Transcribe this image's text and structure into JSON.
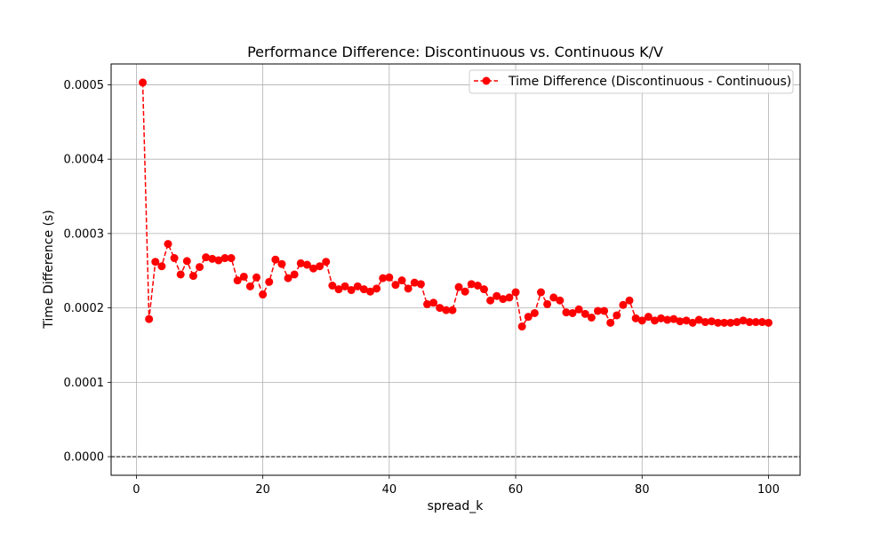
{
  "chart_data": {
    "type": "line",
    "title": "Performance Difference: Discontinuous vs. Continuous K/V",
    "xlabel": "spread_k",
    "ylabel": "Time Difference (s)",
    "xlim": [
      -4,
      105
    ],
    "ylim": [
      -2.5e-05,
      0.000528
    ],
    "xticks": [
      0,
      20,
      40,
      60,
      80,
      100
    ],
    "xtick_labels": [
      "0",
      "20",
      "40",
      "60",
      "80",
      "100"
    ],
    "yticks": [
      0,
      0.0001,
      0.0002,
      0.0003,
      0.0004,
      0.0005
    ],
    "ytick_labels": [
      "0.0000",
      "0.0001",
      "0.0002",
      "0.0003",
      "0.0004",
      "0.0005"
    ],
    "grid": true,
    "legend_position": "top-right",
    "reference_line": {
      "y": 0,
      "style": "dashed",
      "color": "#000000"
    },
    "series": [
      {
        "name": "Time Difference (Discontinuous - Continuous)",
        "color": "#ff0000",
        "line_style": "dashed",
        "marker": "circle",
        "x": [
          1,
          2,
          3,
          4,
          5,
          6,
          7,
          8,
          9,
          10,
          11,
          12,
          13,
          14,
          15,
          16,
          17,
          18,
          19,
          20,
          21,
          22,
          23,
          24,
          25,
          26,
          27,
          28,
          29,
          30,
          31,
          32,
          33,
          34,
          35,
          36,
          37,
          38,
          39,
          40,
          41,
          42,
          43,
          44,
          45,
          46,
          47,
          48,
          49,
          50,
          51,
          52,
          53,
          54,
          55,
          56,
          57,
          58,
          59,
          60,
          61,
          62,
          63,
          64,
          65,
          66,
          67,
          68,
          69,
          70,
          71,
          72,
          73,
          74,
          75,
          76,
          77,
          78,
          79,
          80,
          81,
          82,
          83,
          84,
          85,
          86,
          87,
          88,
          89,
          90,
          91,
          92,
          93,
          94,
          95,
          96,
          97,
          98,
          99,
          100
        ],
        "y": [
          0.000503,
          0.000185,
          0.000262,
          0.000256,
          0.000286,
          0.000267,
          0.000245,
          0.000263,
          0.000243,
          0.000255,
          0.000268,
          0.000266,
          0.000264,
          0.000267,
          0.000267,
          0.000237,
          0.000242,
          0.000229,
          0.000241,
          0.000218,
          0.000235,
          0.000265,
          0.000259,
          0.00024,
          0.000245,
          0.00026,
          0.000258,
          0.000253,
          0.000256,
          0.000262,
          0.00023,
          0.000225,
          0.000229,
          0.000224,
          0.000229,
          0.000225,
          0.000222,
          0.000226,
          0.00024,
          0.000241,
          0.000231,
          0.000237,
          0.000226,
          0.000234,
          0.000232,
          0.000205,
          0.000207,
          0.0002,
          0.000197,
          0.000197,
          0.000228,
          0.000222,
          0.000232,
          0.00023,
          0.000225,
          0.00021,
          0.000216,
          0.000212,
          0.000214,
          0.000221,
          0.000175,
          0.000188,
          0.000193,
          0.000221,
          0.000205,
          0.000214,
          0.00021,
          0.000194,
          0.000193,
          0.000198,
          0.000192,
          0.000187,
          0.000196,
          0.000196,
          0.00018,
          0.00019,
          0.000204,
          0.00021,
          0.000186,
          0.000183,
          0.000188,
          0.000183,
          0.000186,
          0.000184,
          0.000185,
          0.000182,
          0.000183,
          0.00018,
          0.000184,
          0.000181,
          0.000182,
          0.00018,
          0.00018,
          0.00018,
          0.000181,
          0.000183,
          0.000181,
          0.000181,
          0.000181,
          0.00018
        ]
      }
    ]
  }
}
